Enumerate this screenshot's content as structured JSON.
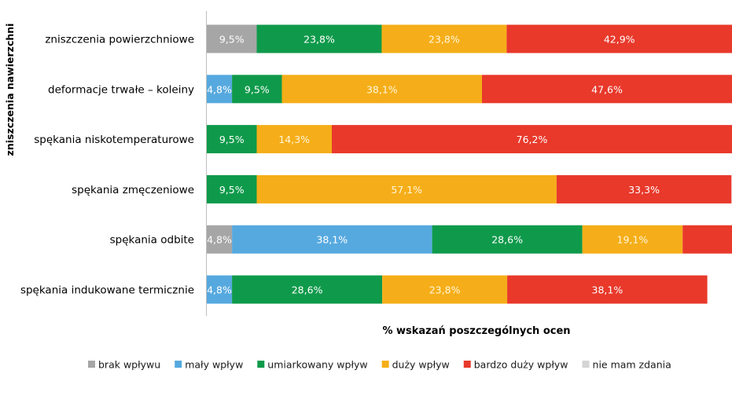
{
  "chart_data": {
    "type": "bar",
    "orientation": "horizontal",
    "stacked": true,
    "ylabel": "zniszczenia nawierzchni",
    "xlabel": "% wskazań poszczególnych ocen",
    "categories": [
      "zniszczenia powierzchniowe",
      "deformacje trwałe – koleiny",
      "spękania niskotemperaturowe",
      "spękania zmęczeniowe",
      "spękania odbite",
      "spękania indukowane termicznie"
    ],
    "xlim": [
      0,
      100
    ],
    "series": [
      {
        "name": "brak wpływu",
        "color": "#a6a6a6",
        "values": [
          9.5,
          0,
          0,
          0,
          4.8,
          0
        ],
        "labels": [
          "9,5%",
          "",
          "",
          "",
          "4,8%",
          ""
        ]
      },
      {
        "name": "mały wpływ",
        "color": "#56a9df",
        "values": [
          0,
          4.8,
          0,
          0,
          38.1,
          4.8
        ],
        "labels": [
          "",
          "4,8%",
          "",
          "",
          "38,1%",
          "4,8%"
        ]
      },
      {
        "name": "umiarkowany wpływ",
        "color": "#0f9a4b",
        "values": [
          23.8,
          9.5,
          9.5,
          9.5,
          28.6,
          28.6
        ],
        "labels": [
          "23,8%",
          "9,5%",
          "9,5%",
          "9,5%",
          "28,6%",
          "28,6%"
        ]
      },
      {
        "name": "duży wpływ",
        "color": "#f5ae19",
        "values": [
          23.8,
          38.1,
          14.3,
          57.1,
          19.1,
          23.8
        ],
        "labels": [
          "23,8%",
          "38,1%",
          "14,3%",
          "57,1%",
          "19,1%",
          "23,8%"
        ]
      },
      {
        "name": "bardzo duży wpływ",
        "color": "#e8392b",
        "values": [
          42.9,
          47.6,
          76.2,
          33.3,
          9.5,
          38.1
        ],
        "labels": [
          "42,9%",
          "47,6%",
          "76,2%",
          "33,3%",
          "",
          "38,1%"
        ]
      },
      {
        "name": "nie mam zdania",
        "color": "#d4d4d4",
        "values": [
          0,
          0,
          0,
          0,
          0,
          0
        ],
        "labels": [
          "",
          "",
          "",
          "",
          "",
          ""
        ]
      }
    ]
  }
}
